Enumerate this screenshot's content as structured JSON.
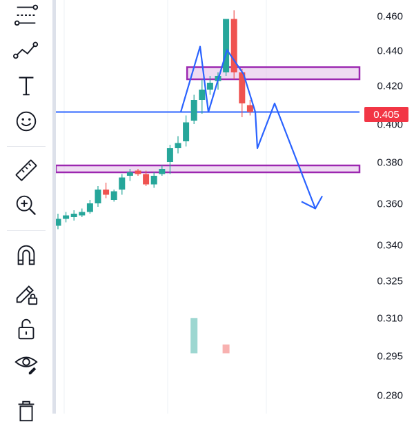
{
  "toolbar": {
    "items": [
      {
        "name": "fib-retracement-icon"
      },
      {
        "name": "trend-line-icon"
      },
      {
        "name": "text-tool-icon"
      },
      {
        "name": "emoji-icon"
      },
      {
        "name": "ruler-icon"
      },
      {
        "name": "zoom-in-icon"
      },
      {
        "name": "magnet-icon"
      },
      {
        "name": "lock-pencil-icon"
      },
      {
        "name": "unlock-icon"
      },
      {
        "name": "eye-icon"
      },
      {
        "name": "trash-icon"
      }
    ]
  },
  "price_axis": {
    "labels": [
      "0.460",
      "0.440",
      "0.420",
      "0.400",
      "0.380",
      "0.360",
      "0.340",
      "0.325",
      "0.310",
      "0.295",
      "0.280"
    ],
    "current_price": "0.405"
  },
  "colors": {
    "up": "#26a69a",
    "down": "#ef5350",
    "drawing_line": "#2962ff",
    "zone_border": "#9c27b0",
    "zone_fill": "#e1bee7",
    "current_price": "#f23645"
  },
  "chart_data": {
    "type": "candlestick",
    "candles": [
      {
        "o": 0.339,
        "h": 0.346,
        "l": 0.337,
        "c": 0.343
      },
      {
        "o": 0.343,
        "h": 0.347,
        "l": 0.341,
        "c": 0.345
      },
      {
        "o": 0.344,
        "h": 0.348,
        "l": 0.342,
        "c": 0.346
      },
      {
        "o": 0.345,
        "h": 0.349,
        "l": 0.344,
        "c": 0.347
      },
      {
        "o": 0.347,
        "h": 0.354,
        "l": 0.346,
        "c": 0.352
      },
      {
        "o": 0.352,
        "h": 0.362,
        "l": 0.35,
        "c": 0.36
      },
      {
        "o": 0.36,
        "h": 0.364,
        "l": 0.355,
        "c": 0.357
      },
      {
        "o": 0.354,
        "h": 0.36,
        "l": 0.353,
        "c": 0.359
      },
      {
        "o": 0.36,
        "h": 0.369,
        "l": 0.357,
        "c": 0.367
      },
      {
        "o": 0.368,
        "h": 0.372,
        "l": 0.365,
        "c": 0.37
      },
      {
        "o": 0.371,
        "h": 0.372,
        "l": 0.368,
        "c": 0.369
      },
      {
        "o": 0.369,
        "h": 0.371,
        "l": 0.362,
        "c": 0.363
      },
      {
        "o": 0.363,
        "h": 0.37,
        "l": 0.361,
        "c": 0.368
      },
      {
        "o": 0.369,
        "h": 0.374,
        "l": 0.368,
        "c": 0.372
      },
      {
        "o": 0.376,
        "h": 0.386,
        "l": 0.369,
        "c": 0.384
      },
      {
        "o": 0.384,
        "h": 0.391,
        "l": 0.381,
        "c": 0.387
      },
      {
        "o": 0.388,
        "h": 0.403,
        "l": 0.385,
        "c": 0.399
      },
      {
        "o": 0.4,
        "h": 0.415,
        "l": 0.398,
        "c": 0.412
      },
      {
        "o": 0.412,
        "h": 0.424,
        "l": 0.404,
        "c": 0.418
      },
      {
        "o": 0.418,
        "h": 0.426,
        "l": 0.415,
        "c": 0.422
      },
      {
        "o": 0.423,
        "h": 0.428,
        "l": 0.418,
        "c": 0.426
      },
      {
        "o": 0.428,
        "h": 0.459,
        "l": 0.426,
        "c": 0.459
      },
      {
        "o": 0.459,
        "h": 0.464,
        "l": 0.424,
        "c": 0.428
      },
      {
        "o": 0.428,
        "h": 0.43,
        "l": 0.402,
        "c": 0.41
      },
      {
        "o": 0.409,
        "h": 0.412,
        "l": 0.403,
        "c": 0.405
      }
    ],
    "volume": [
      {
        "value": 8,
        "dir": "up"
      },
      {
        "value": 2,
        "dir": "down"
      }
    ],
    "horizontal_line": 0.405,
    "zones": [
      {
        "top": 0.431,
        "bottom": 0.424
      },
      {
        "top": 0.374,
        "bottom": 0.37
      }
    ],
    "projection_path": [
      0.405,
      0.443,
      0.405,
      0.441,
      0.427,
      0.405,
      0.384,
      0.41,
      0.349
    ],
    "ylim": [
      0.277,
      0.464
    ]
  }
}
